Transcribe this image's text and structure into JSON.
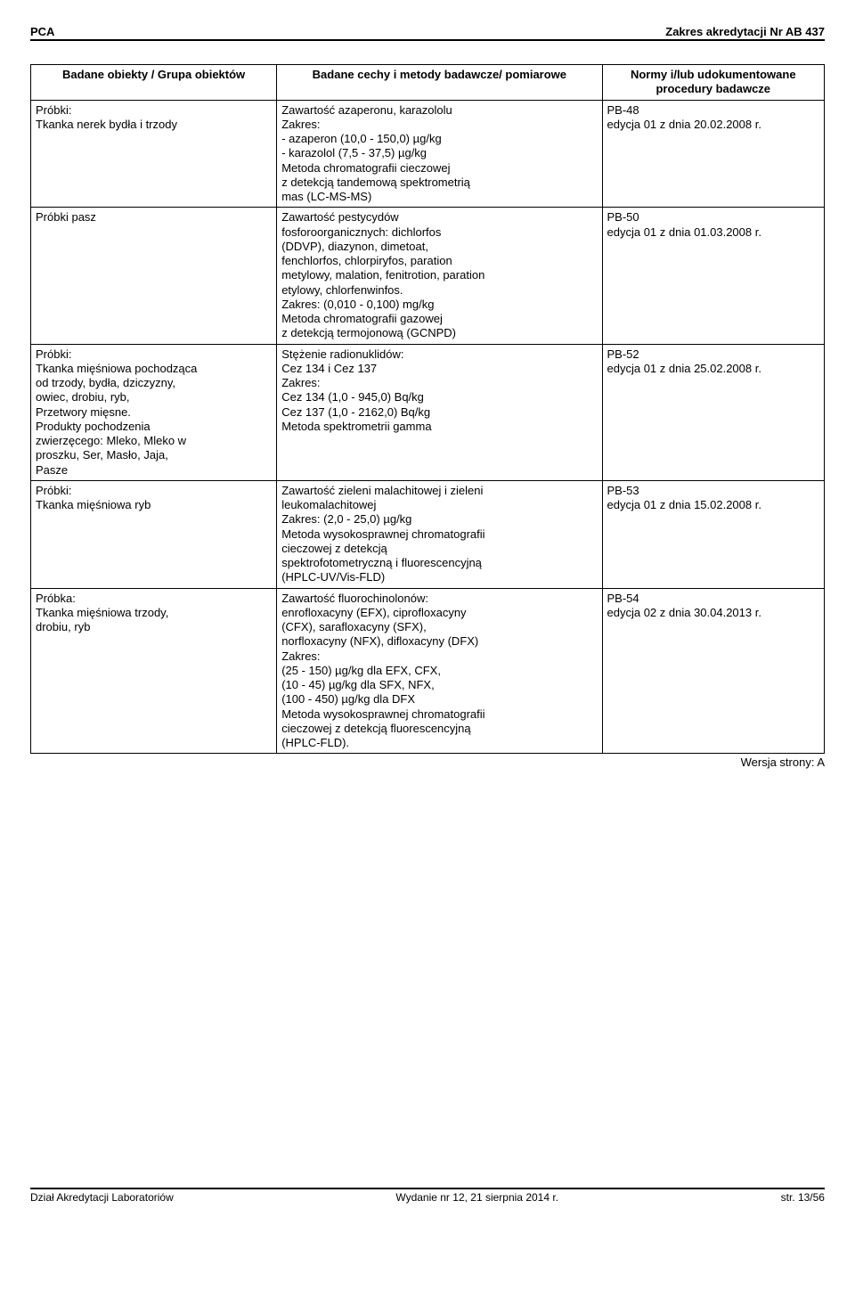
{
  "header": {
    "left": "PCA",
    "right": "Zakres akredytacji Nr AB 437"
  },
  "table": {
    "columns": [
      "Badane obiekty / Grupa obiektów",
      "Badane cechy i metody badawcze/ pomiarowe",
      "Normy i/lub udokumentowane procedury badawcze"
    ],
    "rows": [
      {
        "c1": "Próbki:\nTkanka nerek bydła i trzody",
        "c2": "Zawartość azaperonu, karazololu\nZakres:\n- azaperon (10,0 - 150,0) µg/kg\n- karazolol (7,5 - 37,5) µg/kg\nMetoda chromatografii cieczowej\nz detekcją tandemową spektrometrią\nmas (LC-MS-MS)",
        "c3": "PB-48\nedycja 01 z dnia 20.02.2008 r."
      },
      {
        "c1": "Próbki pasz",
        "c2": "Zawartość pestycydów\nfosforoorganicznych: dichlorfos\n(DDVP), diazynon, dimetoat,\nfenchlorfos, chlorpiryfos, paration\nmetylowy, malation, fenitrotion, paration\netylowy, chlorfenwinfos.\nZakres: (0,010 - 0,100) mg/kg\nMetoda chromatografii gazowej\nz detekcją termojonową (GCNPD)",
        "c3": "PB-50\nedycja 01 z dnia 01.03.2008 r."
      },
      {
        "c1": "Próbki:\nTkanka mięśniowa pochodząca\nod trzody, bydła, dziczyzny,\nowiec, drobiu, ryb,\nPrzetwory mięsne.\nProdukty pochodzenia\nzwierzęcego: Mleko, Mleko w\nproszku, Ser, Masło, Jaja,\nPasze",
        "c2": "Stężenie radionuklidów:\nCez 134 i Cez 137\nZakres:\nCez 134  (1,0 - 945,0) Bq/kg\nCez 137  (1,0 - 2162,0) Bq/kg\nMetoda spektrometrii gamma",
        "c3": "PB-52\nedycja 01 z dnia 25.02.2008 r."
      },
      {
        "c1": "Próbki:\nTkanka mięśniowa ryb",
        "c2": "Zawartość zieleni malachitowej i zieleni\nleukomalachitowej\nZakres: (2,0 - 25,0) µg/kg\nMetoda wysokosprawnej chromatografii\ncieczowej z detekcją\nspektrofotometryczną i fluorescencyjną\n(HPLC-UV/Vis-FLD)",
        "c3": "PB-53\nedycja 01 z dnia 15.02.2008 r."
      },
      {
        "c1": "Próbka:\nTkanka mięśniowa trzody,\ndrobiu, ryb",
        "c2": "Zawartość fluorochinolonów:\nenrofloxacyny (EFX), ciprofloxacyny\n(CFX), sarafloxacyny (SFX),\nnorfloxacyny (NFX), difloxacyny (DFX)\nZakres:\n(25 - 150) µg/kg dla EFX, CFX,\n(10 - 45) µg/kg dla SFX, NFX,\n(100 - 450) µg/kg dla DFX\nMetoda wysokosprawnej chromatografii\ncieczowej z detekcją fluorescencyjną\n(HPLC-FLD).",
        "c3": "PB-54\nedycja 02 z dnia 30.04.2013 r."
      }
    ]
  },
  "version_label": "Wersja strony: A",
  "footer": {
    "left": "Dział Akredytacji Laboratoriów",
    "center": "Wydanie nr 12, 21 sierpnia 2014 r.",
    "right": "str. 13/56"
  }
}
